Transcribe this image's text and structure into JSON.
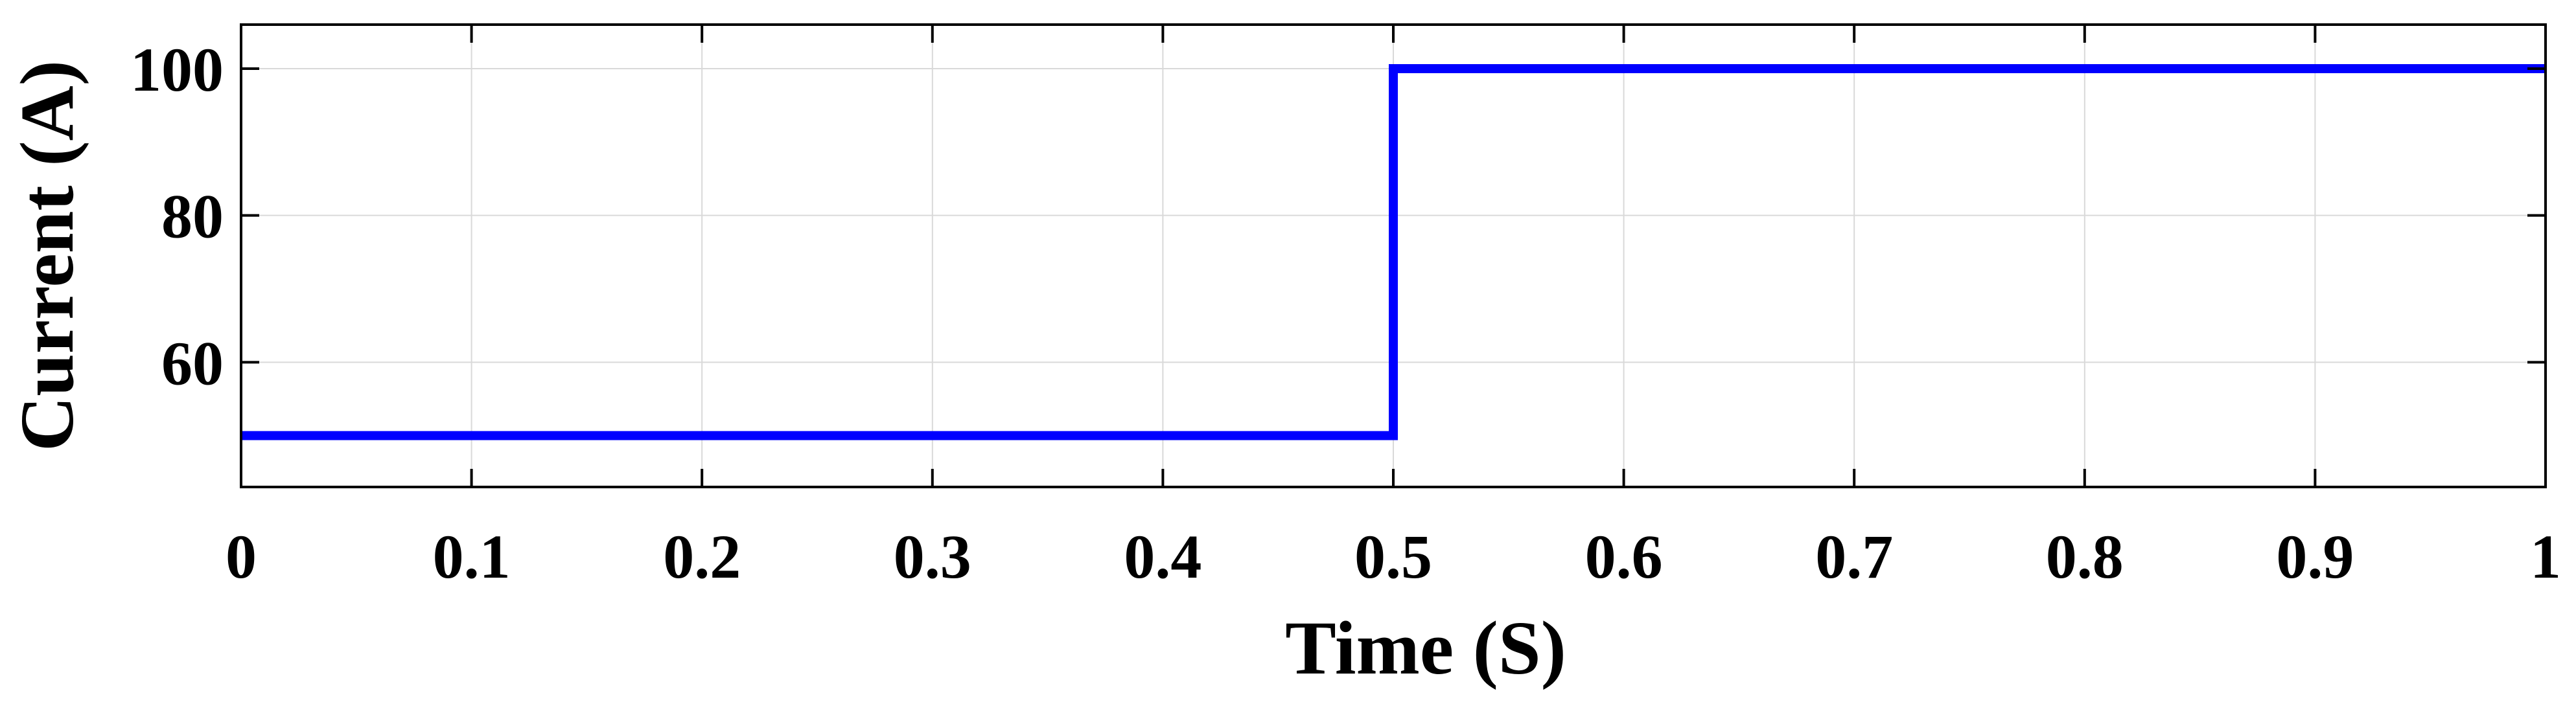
{
  "chart_data": {
    "type": "line",
    "title": "",
    "xlabel": "Time (S)",
    "ylabel": "Current (A)",
    "xlim": [
      0,
      1
    ],
    "ylim": [
      43,
      106
    ],
    "grid": true,
    "x_ticks": [
      0,
      0.1,
      0.2,
      0.3,
      0.4,
      0.5,
      0.6,
      0.7,
      0.8,
      0.9,
      1
    ],
    "x_tick_labels": [
      "0",
      "0.1",
      "0.2",
      "0.3",
      "0.4",
      "0.5",
      "0.6",
      "0.7",
      "0.8",
      "0.9",
      "1"
    ],
    "y_ticks": [
      60,
      80,
      100
    ],
    "y_tick_labels": [
      "60",
      "80",
      "100"
    ],
    "series": [
      {
        "color": "#0000ff",
        "x": [
          0,
          0.5,
          0.5,
          1
        ],
        "y": [
          50,
          50,
          100,
          100
        ]
      }
    ]
  }
}
